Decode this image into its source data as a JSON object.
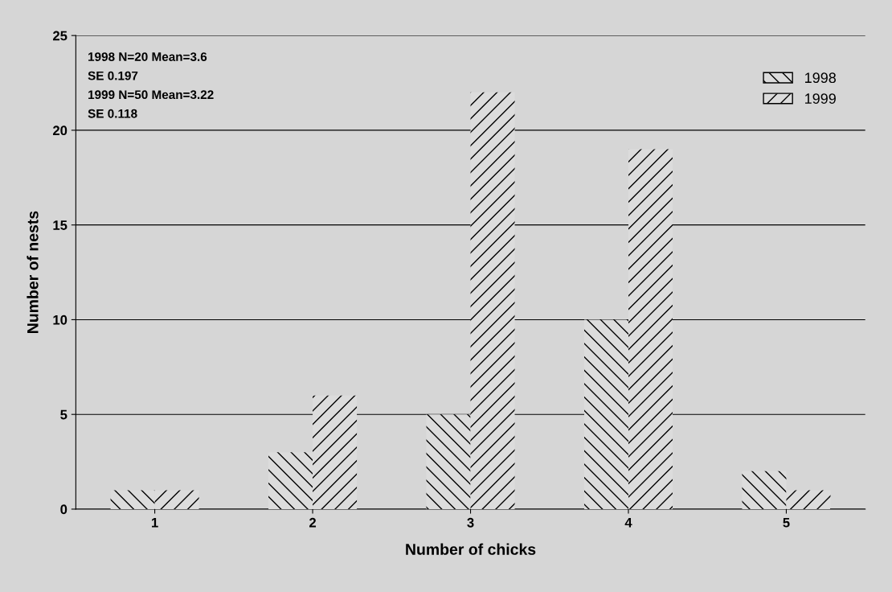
{
  "chart_data": {
    "type": "bar",
    "xlabel": "Number of chicks",
    "ylabel": "Number of nests",
    "categories": [
      "1",
      "2",
      "3",
      "4",
      "5"
    ],
    "series": [
      {
        "name": "1998",
        "color": "#dcdcdc",
        "values": [
          1,
          3,
          5,
          10,
          2
        ]
      },
      {
        "name": "1999",
        "color": "#dcdcdc",
        "values": [
          1,
          6,
          22,
          19,
          1
        ]
      }
    ],
    "ylim": [
      0,
      25
    ],
    "yticks": [
      0,
      5,
      10,
      15,
      20,
      25
    ],
    "grid": "y",
    "legend": "top right",
    "annotations": [
      "1998 N=20 Mean=3.6",
      "SE 0.197",
      "1999 N=50 Mean=3.22",
      "SE 0.118"
    ]
  }
}
